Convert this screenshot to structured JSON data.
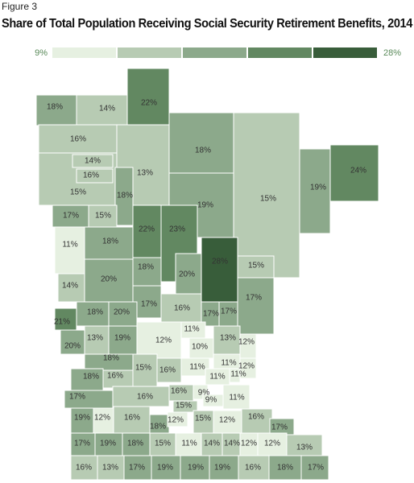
{
  "figure_label": "Figure 3",
  "title": "Share of Total Population Receiving Social Security Retirement Benefits, 2014",
  "legend": {
    "range": [
      {
        "value": 9,
        "label": "9%"
      },
      {
        "value": 28,
        "label": "28%"
      }
    ],
    "colors": [
      "#e6f0e1",
      "#b7cbb3",
      "#8ca98b",
      "#628861",
      "#385d3a"
    ]
  },
  "counties": [
    {
      "value": 18,
      "label": "18%"
    },
    {
      "value": 14,
      "label": "14%"
    },
    {
      "value": 22,
      "label": "22%"
    },
    {
      "value": 15,
      "label": "15%"
    },
    {
      "value": 16,
      "label": "16%"
    },
    {
      "value": 14,
      "label": "14%"
    },
    {
      "value": 16,
      "label": "16%"
    },
    {
      "value": 13,
      "label": "13%"
    },
    {
      "value": 18,
      "label": "18%"
    },
    {
      "value": 18,
      "label": "18%"
    },
    {
      "value": 15,
      "label": "15%"
    },
    {
      "value": 19,
      "label": "19%"
    },
    {
      "value": 24,
      "label": "24%"
    },
    {
      "value": 17,
      "label": "17%"
    },
    {
      "value": 15,
      "label": "15%"
    },
    {
      "value": 11,
      "label": "11%"
    },
    {
      "value": 18,
      "label": "18%"
    },
    {
      "value": 22,
      "label": "22%"
    },
    {
      "value": 19,
      "label": "19%"
    },
    {
      "value": 23,
      "label": "23%"
    },
    {
      "value": 28,
      "label": "28%"
    },
    {
      "value": 15,
      "label": "15%"
    },
    {
      "value": 17,
      "label": "17%"
    },
    {
      "value": 18,
      "label": "18%"
    },
    {
      "value": 20,
      "label": "20%"
    },
    {
      "value": 14,
      "label": "14%"
    },
    {
      "value": 20,
      "label": "20%"
    },
    {
      "value": 17,
      "label": "17%"
    },
    {
      "value": 16,
      "label": "16%"
    },
    {
      "value": 17,
      "label": "17%"
    },
    {
      "value": 17,
      "label": "17%"
    },
    {
      "value": 21,
      "label": "21%"
    },
    {
      "value": 18,
      "label": "18%"
    },
    {
      "value": 20,
      "label": "20%"
    },
    {
      "value": 20,
      "label": "20%"
    },
    {
      "value": 13,
      "label": "13%"
    },
    {
      "value": 19,
      "label": "19%"
    },
    {
      "value": 12,
      "label": "12%"
    },
    {
      "value": 11,
      "label": "11%"
    },
    {
      "value": 10,
      "label": "10%"
    },
    {
      "value": 13,
      "label": "13%"
    },
    {
      "value": 12,
      "label": "12%"
    },
    {
      "value": 12,
      "label": "12%"
    },
    {
      "value": 18,
      "label": "18%"
    },
    {
      "value": 15,
      "label": "15%"
    },
    {
      "value": 16,
      "label": "16%"
    },
    {
      "value": 11,
      "label": "11%"
    },
    {
      "value": 11,
      "label": "11%"
    },
    {
      "value": 11,
      "label": "11%"
    },
    {
      "value": 11,
      "label": "11%"
    },
    {
      "value": 18,
      "label": "18%"
    },
    {
      "value": 16,
      "label": "16%"
    },
    {
      "value": 17,
      "label": "17%"
    },
    {
      "value": 16,
      "label": "16%"
    },
    {
      "value": 16,
      "label": "16%"
    },
    {
      "value": 9,
      "label": "9%"
    },
    {
      "value": 9,
      "label": "9%"
    },
    {
      "value": 11,
      "label": "11%"
    },
    {
      "value": 15,
      "label": "15%"
    },
    {
      "value": 19,
      "label": "19%"
    },
    {
      "value": 12,
      "label": "12%"
    },
    {
      "value": 16,
      "label": "16%"
    },
    {
      "value": 18,
      "label": "18%"
    },
    {
      "value": 12,
      "label": "12%"
    },
    {
      "value": 15,
      "label": "15%"
    },
    {
      "value": 12,
      "label": "12%"
    },
    {
      "value": 16,
      "label": "16%"
    },
    {
      "value": 17,
      "label": "17%"
    },
    {
      "value": 17,
      "label": "17%"
    },
    {
      "value": 19,
      "label": "19%"
    },
    {
      "value": 18,
      "label": "18%"
    },
    {
      "value": 15,
      "label": "15%"
    },
    {
      "value": 11,
      "label": "11%"
    },
    {
      "value": 14,
      "label": "14%"
    },
    {
      "value": 14,
      "label": "14%"
    },
    {
      "value": 12,
      "label": "12%"
    },
    {
      "value": 12,
      "label": "12%"
    },
    {
      "value": 13,
      "label": "13%"
    },
    {
      "value": 16,
      "label": "16%"
    },
    {
      "value": 13,
      "label": "13%"
    },
    {
      "value": 17,
      "label": "17%"
    },
    {
      "value": 19,
      "label": "19%"
    },
    {
      "value": 19,
      "label": "19%"
    },
    {
      "value": 19,
      "label": "19%"
    },
    {
      "value": 16,
      "label": "16%"
    },
    {
      "value": 18,
      "label": "18%"
    },
    {
      "value": 17,
      "label": "17%"
    }
  ]
}
